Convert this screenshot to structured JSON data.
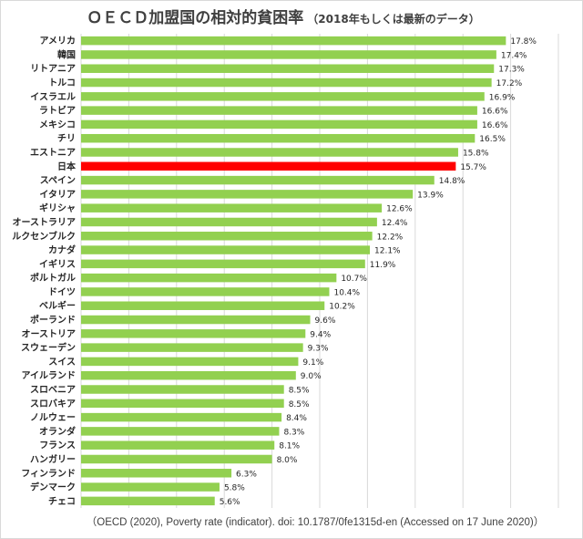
{
  "chart_data": {
    "type": "bar",
    "orientation": "horizontal",
    "title": "ＯＥＣＤ加盟国の相対的貧困率",
    "subtitle": "（2018年もしくは最新のデータ）",
    "source": "（OECD (2020), Poverty rate (indicator). doi: 10.1787/0fe1315d-en (Accessed on 17 June 2020)）",
    "xlim": [
      0,
      20
    ],
    "grid": true,
    "default_color": "#92d050",
    "highlight_color": "#ff0000",
    "value_suffix": "%",
    "bars": [
      {
        "category": "アメリカ",
        "value": 17.8,
        "highlight": false
      },
      {
        "category": "韓国",
        "value": 17.4,
        "highlight": false
      },
      {
        "category": "リトアニア",
        "value": 17.3,
        "highlight": false
      },
      {
        "category": "トルコ",
        "value": 17.2,
        "highlight": false
      },
      {
        "category": "イスラエル",
        "value": 16.9,
        "highlight": false
      },
      {
        "category": "ラトビア",
        "value": 16.6,
        "highlight": false
      },
      {
        "category": "メキシコ",
        "value": 16.6,
        "highlight": false
      },
      {
        "category": "チリ",
        "value": 16.5,
        "highlight": false
      },
      {
        "category": "エストニア",
        "value": 15.8,
        "highlight": false
      },
      {
        "category": "日本",
        "value": 15.7,
        "highlight": true
      },
      {
        "category": "スペイン",
        "value": 14.8,
        "highlight": false
      },
      {
        "category": "イタリア",
        "value": 13.9,
        "highlight": false
      },
      {
        "category": "ギリシャ",
        "value": 12.6,
        "highlight": false
      },
      {
        "category": "オーストラリア",
        "value": 12.4,
        "highlight": false
      },
      {
        "category": "ルクセンブルク",
        "value": 12.2,
        "highlight": false
      },
      {
        "category": "カナダ",
        "value": 12.1,
        "highlight": false
      },
      {
        "category": "イギリス",
        "value": 11.9,
        "highlight": false
      },
      {
        "category": "ポルトガル",
        "value": 10.7,
        "highlight": false
      },
      {
        "category": "ドイツ",
        "value": 10.4,
        "highlight": false
      },
      {
        "category": "ベルギー",
        "value": 10.2,
        "highlight": false
      },
      {
        "category": "ポーランド",
        "value": 9.6,
        "highlight": false
      },
      {
        "category": "オーストリア",
        "value": 9.4,
        "highlight": false
      },
      {
        "category": "スウェーデン",
        "value": 9.3,
        "highlight": false
      },
      {
        "category": "スイス",
        "value": 9.1,
        "highlight": false
      },
      {
        "category": "アイルランド",
        "value": 9.0,
        "highlight": false
      },
      {
        "category": "スロベニア",
        "value": 8.5,
        "highlight": false
      },
      {
        "category": "スロバキア",
        "value": 8.5,
        "highlight": false
      },
      {
        "category": "ノルウェー",
        "value": 8.4,
        "highlight": false
      },
      {
        "category": "オランダ",
        "value": 8.3,
        "highlight": false
      },
      {
        "category": "フランス",
        "value": 8.1,
        "highlight": false
      },
      {
        "category": "ハンガリー",
        "value": 8.0,
        "highlight": false
      },
      {
        "category": "フィンランド",
        "value": 6.3,
        "highlight": false
      },
      {
        "category": "デンマーク",
        "value": 5.8,
        "highlight": false
      },
      {
        "category": "チェコ",
        "value": 5.6,
        "highlight": false
      }
    ]
  }
}
